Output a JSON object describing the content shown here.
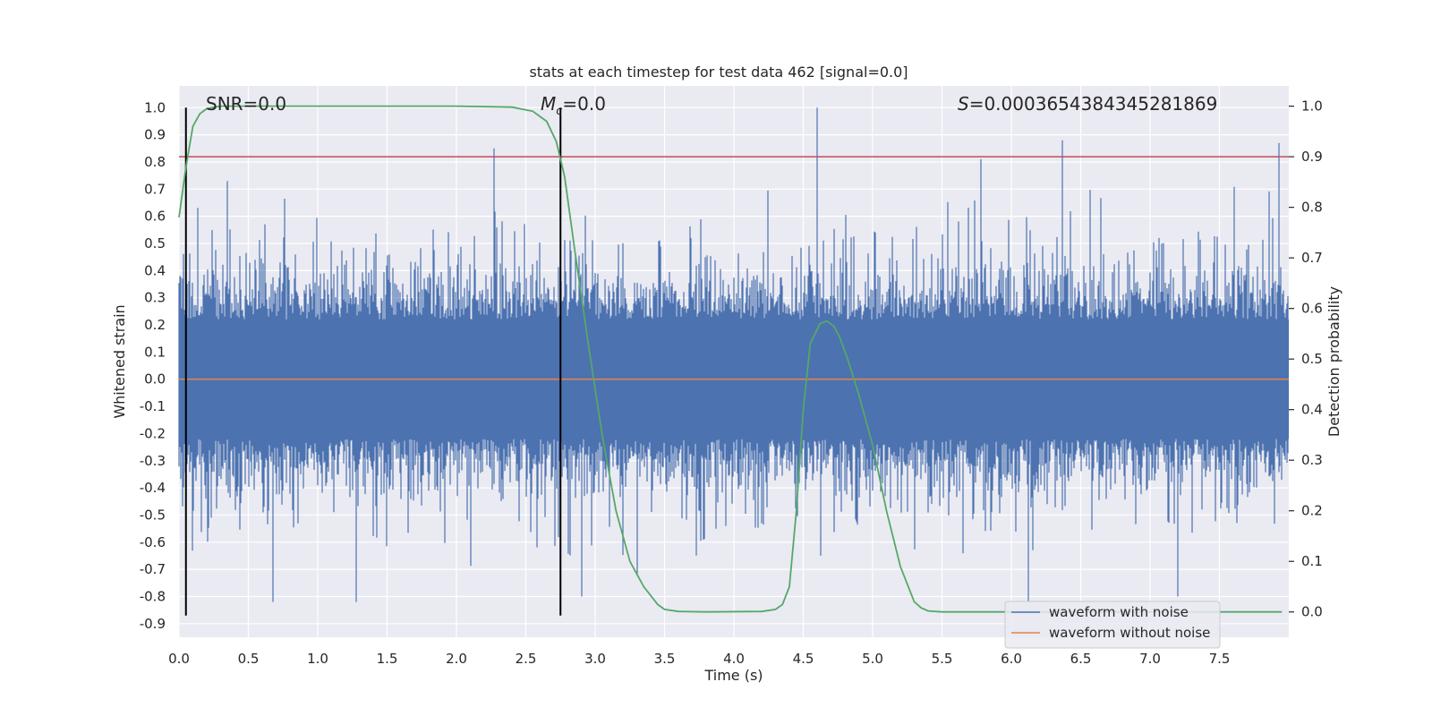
{
  "chart_data": {
    "type": "line",
    "title": "stats at each timestep for test data 462 [signal=0.0]",
    "xlabel": "Time (s)",
    "ylabel_left": "Whitened strain",
    "ylabel_right": "Detection probability",
    "xlim": [
      0.0,
      8.0
    ],
    "ylim_left": [
      -0.95,
      1.08
    ],
    "ylim_right": [
      -0.05,
      1.04
    ],
    "x_ticks": [
      0.0,
      0.5,
      1.0,
      1.5,
      2.0,
      2.5,
      3.0,
      3.5,
      4.0,
      4.5,
      5.0,
      5.5,
      6.0,
      6.5,
      7.0,
      7.5
    ],
    "x_tick_labels": [
      "0.0",
      "0.5",
      "1.0",
      "1.5",
      "2.0",
      "2.5",
      "3.0",
      "3.5",
      "4.0",
      "4.5",
      "5.0",
      "5.5",
      "6.0",
      "6.5",
      "7.0",
      "7.5"
    ],
    "y_left_ticks": [
      1.0,
      0.9,
      0.8,
      0.7,
      0.6,
      0.5,
      0.4,
      0.3,
      0.2,
      0.1,
      0.0,
      -0.1,
      -0.2,
      -0.3,
      -0.4,
      -0.5,
      -0.6,
      -0.7,
      -0.8,
      -0.9
    ],
    "y_left_tick_labels": [
      "1.0",
      "0.9",
      "0.8",
      "0.7",
      "0.6",
      "0.5",
      "0.4",
      "0.3",
      "0.2",
      "0.1",
      "0.0",
      "-0.1",
      "-0.2",
      "-0.3",
      "-0.4",
      "-0.5",
      "-0.6",
      "-0.7",
      "-0.8",
      "-0.9"
    ],
    "y_right_ticks": [
      1.0,
      0.9,
      0.8,
      0.7,
      0.6,
      0.5,
      0.4,
      0.3,
      0.2,
      0.1,
      0.0
    ],
    "y_right_tick_labels": [
      "1.0",
      "0.9",
      "0.8",
      "0.7",
      "0.6",
      "0.5",
      "0.4",
      "0.3",
      "0.2",
      "0.1",
      "0.0"
    ],
    "grid": true,
    "legend_position": "lower-right",
    "series": [
      {
        "name": "waveform with noise",
        "axis": "left",
        "color": "#4c72b0",
        "sample_rate_hz": 2048,
        "peak_max": 1.0,
        "peak_min": -0.83,
        "typical_band": [
          -0.3,
          0.3
        ]
      },
      {
        "name": "waveform without noise",
        "axis": "left",
        "color": "#dd8452",
        "x": [
          0.0,
          8.0
        ],
        "y": [
          0.0,
          0.0
        ]
      },
      {
        "axis": "right",
        "color": "#55a868",
        "x": [
          0.0,
          0.05,
          0.1,
          0.15,
          0.2,
          0.3,
          0.4,
          1.0,
          2.0,
          2.4,
          2.55,
          2.65,
          2.72,
          2.78,
          2.85,
          2.95,
          3.05,
          3.15,
          3.25,
          3.35,
          3.45,
          3.5,
          3.6,
          3.8,
          4.2,
          4.3,
          4.35,
          4.4,
          4.45,
          4.5,
          4.55,
          4.62,
          4.67,
          4.72,
          4.76,
          4.82,
          4.9,
          5.0,
          5.1,
          5.2,
          5.3,
          5.35,
          5.4,
          5.5,
          7.5,
          7.95
        ],
        "y": [
          0.78,
          0.88,
          0.96,
          0.985,
          0.995,
          1.0,
          1.0,
          1.0,
          1.0,
          0.998,
          0.99,
          0.97,
          0.93,
          0.86,
          0.72,
          0.53,
          0.35,
          0.2,
          0.1,
          0.05,
          0.015,
          0.005,
          0.001,
          0.0,
          0.001,
          0.005,
          0.015,
          0.05,
          0.2,
          0.4,
          0.53,
          0.57,
          0.575,
          0.565,
          0.545,
          0.5,
          0.43,
          0.33,
          0.2,
          0.09,
          0.02,
          0.008,
          0.002,
          0.0,
          0.0,
          0.0
        ]
      }
    ],
    "hlines": [
      {
        "axis": "right",
        "y": 0.9,
        "color": "#c44e52"
      }
    ],
    "vlines": [
      {
        "x": 0.05,
        "y_from": -0.87,
        "y_to": 1.0,
        "color": "#000000"
      },
      {
        "x": 2.75,
        "y_from": -0.87,
        "y_to": 1.0,
        "color": "#000000"
      }
    ],
    "annotations": {
      "snr": "SNR=0.0",
      "mc_symbol": "M",
      "mc_subscript": "c",
      "mc_value": "=0.0",
      "s_symbol": "S",
      "s_value": "=0.0003654384345281869"
    }
  }
}
